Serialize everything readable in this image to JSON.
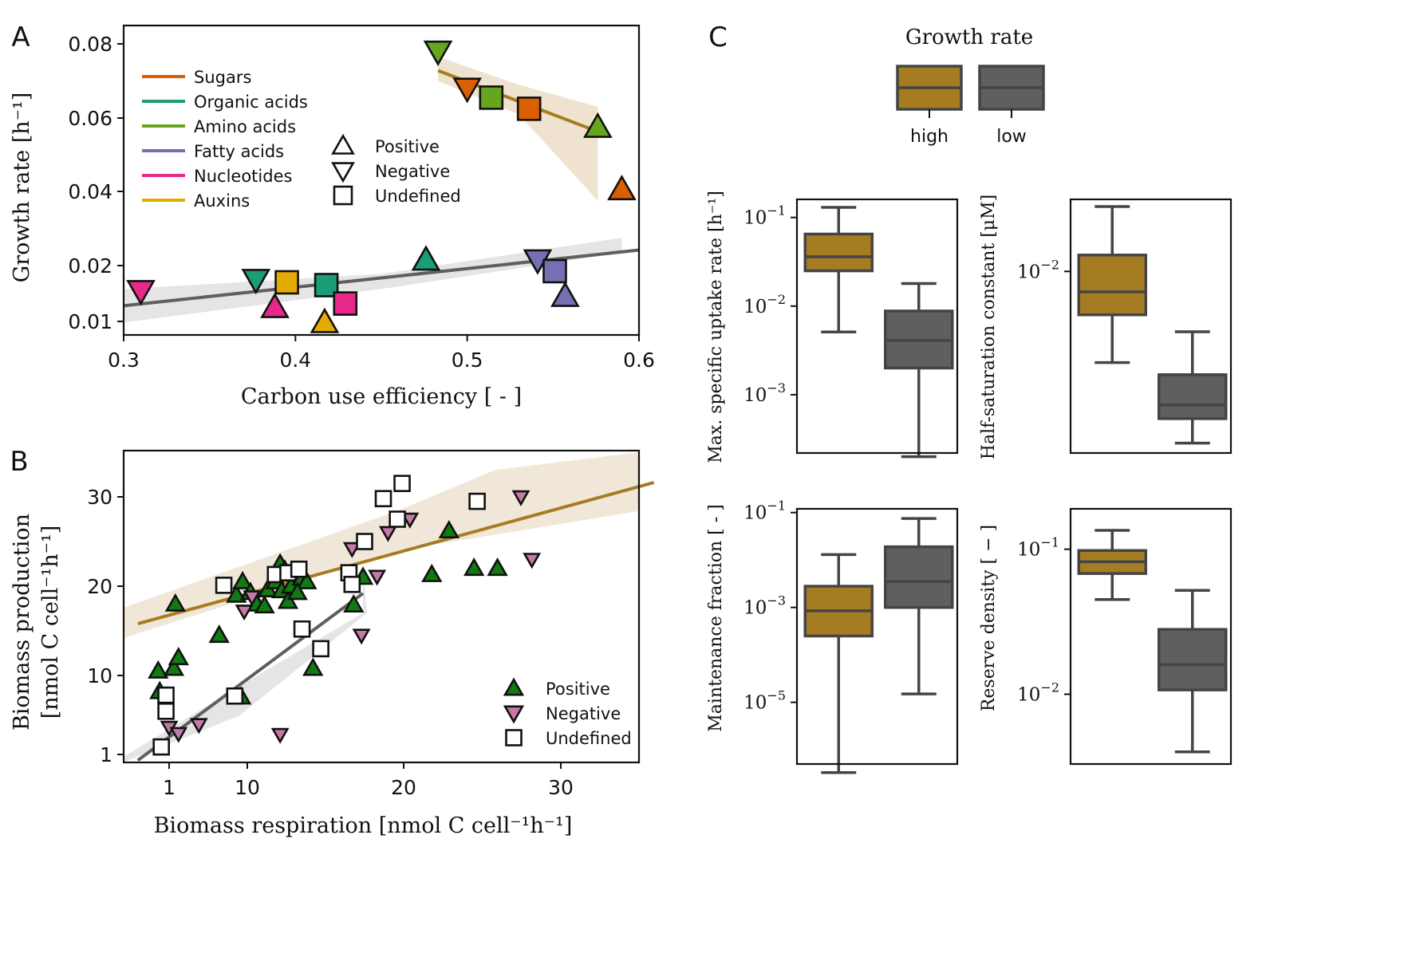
{
  "colors": {
    "sugars": "#d95f02",
    "organic_acids": "#1b9e77",
    "amino_acids": "#66a61e",
    "fatty_acids": "#7570b3",
    "nucleotides": "#e7298a",
    "auxins": "#e6ab02",
    "high": "#a67c23",
    "low": "#5f5f5f",
    "positive_b": "#117a11",
    "negative_b": "#c47aa6",
    "undefined_b": "#ffffff"
  },
  "chart_data": [
    {
      "panel": "A",
      "type": "scatter",
      "xlabel": "Carbon use efficiency [ - ]",
      "ylabel": "Growth rate [h⁻¹]",
      "xlim": [
        0.3,
        0.6
      ],
      "ylim": [
        0.0065,
        0.085
      ],
      "xticks": [
        "0.3",
        "0.4",
        "0.5",
        "0.6"
      ],
      "yticks": [
        "0.01",
        "0.02",
        "0.04",
        "0.06",
        "0.08"
      ],
      "legend_classes": [
        {
          "name": "Sugars",
          "color": "sugars"
        },
        {
          "name": "Organic acids",
          "color": "organic_acids"
        },
        {
          "name": "Amino acids",
          "color": "amino_acids"
        },
        {
          "name": "Fatty acids",
          "color": "fatty_acids"
        },
        {
          "name": "Nucleotides",
          "color": "nucleotides"
        },
        {
          "name": "Auxins",
          "color": "auxins"
        }
      ],
      "legend_markers": [
        {
          "name": "Positive",
          "marker": "up"
        },
        {
          "name": "Negative",
          "marker": "down"
        },
        {
          "name": "Undefined",
          "marker": "square"
        }
      ],
      "points": [
        {
          "x": 0.31,
          "y": 0.0155,
          "cls": "nucleotides",
          "m": "down"
        },
        {
          "x": 0.377,
          "y": 0.0175,
          "cls": "organic_acids",
          "m": "down"
        },
        {
          "x": 0.388,
          "y": 0.0125,
          "cls": "nucleotides",
          "m": "up"
        },
        {
          "x": 0.395,
          "y": 0.017,
          "cls": "auxins",
          "m": "square"
        },
        {
          "x": 0.418,
          "y": 0.0165,
          "cls": "organic_acids",
          "m": "square"
        },
        {
          "x": 0.417,
          "y": 0.0098,
          "cls": "auxins",
          "m": "up"
        },
        {
          "x": 0.429,
          "y": 0.0132,
          "cls": "nucleotides",
          "m": "square"
        },
        {
          "x": 0.476,
          "y": 0.0215,
          "cls": "organic_acids",
          "m": "up"
        },
        {
          "x": 0.541,
          "y": 0.0215,
          "cls": "fatty_acids",
          "m": "down"
        },
        {
          "x": 0.551,
          "y": 0.019,
          "cls": "fatty_acids",
          "m": "square"
        },
        {
          "x": 0.557,
          "y": 0.0145,
          "cls": "fatty_acids",
          "m": "up"
        },
        {
          "x": 0.483,
          "y": 0.078,
          "cls": "amino_acids",
          "m": "down"
        },
        {
          "x": 0.5,
          "y": 0.068,
          "cls": "sugars",
          "m": "down"
        },
        {
          "x": 0.514,
          "y": 0.0655,
          "cls": "amino_acids",
          "m": "square"
        },
        {
          "x": 0.536,
          "y": 0.0625,
          "cls": "sugars",
          "m": "square"
        },
        {
          "x": 0.576,
          "y": 0.0575,
          "cls": "amino_acids",
          "m": "up"
        },
        {
          "x": 0.59,
          "y": 0.0405,
          "cls": "sugars",
          "m": "up"
        }
      ],
      "fits": [
        {
          "group": "high",
          "x": [
            0.483,
            0.576
          ],
          "y": [
            0.0728,
            0.0563
          ]
        },
        {
          "group": "low",
          "x": [
            0.3,
            0.6
          ],
          "y": [
            0.0128,
            0.0242
          ]
        }
      ]
    },
    {
      "panel": "B",
      "type": "scatter",
      "xlabel": "Biomass respiration [nmol C cell⁻¹h⁻¹]",
      "ylabel": "Biomass production",
      "ylabel2": "[nmol C cell⁻¹h⁻¹]",
      "xlim": [
        -2,
        31
      ],
      "ylim": [
        0,
        35
      ],
      "xticks": [
        "1",
        "10",
        "20",
        "30"
      ],
      "yticks": [
        "1",
        "10",
        "20",
        "30"
      ],
      "legend_markers": [
        {
          "name": "Positive",
          "marker": "up",
          "color": "positive_b"
        },
        {
          "name": "Negative",
          "marker": "down",
          "color": "negative_b"
        },
        {
          "name": "Undefined",
          "marker": "square",
          "color": "undefined_b"
        }
      ],
      "positive": [
        [
          -0.7,
          10.5
        ],
        [
          -0.6,
          8.2
        ],
        [
          0.3,
          10.8
        ],
        [
          0.6,
          12
        ],
        [
          0.4,
          18
        ],
        [
          3.2,
          14.5
        ],
        [
          4.6,
          7.6
        ],
        [
          4.3,
          19
        ],
        [
          4.7,
          20.5
        ],
        [
          5.2,
          19.3
        ],
        [
          5.6,
          18
        ],
        [
          6.1,
          17.8
        ],
        [
          6.3,
          19.6
        ],
        [
          6.8,
          20.5
        ],
        [
          7.1,
          22.5
        ],
        [
          7.2,
          19.5
        ],
        [
          7.4,
          21.8
        ],
        [
          7.6,
          18.3
        ],
        [
          7.8,
          20
        ],
        [
          8.2,
          21.6
        ],
        [
          8.5,
          20.9
        ],
        [
          8.8,
          20.5
        ],
        [
          8.2,
          19.3
        ],
        [
          9.2,
          10.8
        ],
        [
          11.8,
          17.9
        ],
        [
          12.4,
          21
        ],
        [
          16.8,
          21.3
        ],
        [
          17.9,
          26.2
        ],
        [
          19.5,
          22
        ],
        [
          21,
          22
        ]
      ],
      "negative": [
        [
          0,
          4.2
        ],
        [
          0.6,
          3.5
        ],
        [
          1.9,
          4.5
        ],
        [
          4.8,
          17.2
        ],
        [
          5.3,
          18.8
        ],
        [
          7.1,
          3.4
        ],
        [
          11.7,
          24.2
        ],
        [
          12.3,
          14.5
        ],
        [
          13.3,
          21.1
        ],
        [
          14,
          26
        ],
        [
          15.4,
          27.5
        ],
        [
          22.5,
          30
        ],
        [
          23.2,
          23
        ]
      ],
      "undefined": [
        [
          -0.5,
          2
        ],
        [
          -0.2,
          7.8
        ],
        [
          -0.2,
          6
        ],
        [
          3.5,
          20.1
        ],
        [
          4.2,
          7.7
        ],
        [
          6.8,
          21.3
        ],
        [
          7.6,
          21.5
        ],
        [
          8.3,
          21.9
        ],
        [
          8.5,
          15.2
        ],
        [
          9.7,
          13
        ],
        [
          11.5,
          21.5
        ],
        [
          11.7,
          20.2
        ],
        [
          12.5,
          25
        ],
        [
          13.7,
          29.8
        ],
        [
          14.6,
          27.5
        ],
        [
          14.9,
          31.5
        ],
        [
          19.7,
          29.5
        ]
      ],
      "fits": [
        {
          "group": "high",
          "x": [
            -2,
            31
          ],
          "y": [
            15.8,
            31.6
          ]
        },
        {
          "group": "low",
          "x": [
            -2,
            12.4
          ],
          "y": [
            0.5,
            19.2
          ]
        }
      ]
    },
    {
      "panel": "C",
      "type": "box",
      "legend_title": "Growth rate",
      "groups": [
        "high",
        "low"
      ],
      "subplots": [
        {
          "ylabel": "Max. specific uptake rate [h⁻¹]",
          "scale": "log",
          "ylim": [
            0.00022,
            0.16
          ],
          "ticks": [
            0.1,
            0.01,
            0.001
          ],
          "boxes": [
            {
              "group": "high",
              "whislo": 0.0051,
              "q1": 0.025,
              "med": 0.036,
              "q3": 0.065,
              "whishi": 0.13
            },
            {
              "group": "low",
              "whislo": 0.0002,
              "q1": 0.002,
              "med": 0.0041,
              "q3": 0.0088,
              "whishi": 0.018
            }
          ]
        },
        {
          "ylabel": "Half-saturation constant [μM]",
          "scale": "log",
          "ylim": [
            0.0011,
            0.024
          ],
          "ticks": [
            0.01
          ],
          "boxes": [
            {
              "group": "high",
              "whislo": 0.0033,
              "q1": 0.0059,
              "med": 0.0078,
              "q3": 0.0122,
              "whishi": 0.022
            },
            {
              "group": "low",
              "whislo": 0.00124,
              "q1": 0.00167,
              "med": 0.00197,
              "q3": 0.00285,
              "whishi": 0.0048
            }
          ]
        },
        {
          "ylabel": "Maintenance fraction [ - ]",
          "scale": "log",
          "ylim": [
            5e-07,
            0.12
          ],
          "ticks": [
            0.1,
            0.001,
            1e-05
          ],
          "boxes": [
            {
              "group": "high",
              "whislo": 3.3e-07,
              "q1": 0.00025,
              "med": 0.00085,
              "q3": 0.0028,
              "whishi": 0.013
            },
            {
              "group": "low",
              "whislo": 1.5e-05,
              "q1": 0.001,
              "med": 0.0035,
              "q3": 0.019,
              "whishi": 0.075
            }
          ]
        },
        {
          "ylabel": "Reserve density [ − ]",
          "scale": "log",
          "ylim": [
            0.0033,
            0.19
          ],
          "ticks": [
            0.1,
            0.01
          ],
          "boxes": [
            {
              "group": "high",
              "whislo": 0.045,
              "q1": 0.068,
              "med": 0.082,
              "q3": 0.098,
              "whishi": 0.135
            },
            {
              "group": "low",
              "whislo": 0.004,
              "q1": 0.0107,
              "med": 0.016,
              "q3": 0.028,
              "whishi": 0.052
            }
          ]
        }
      ]
    }
  ],
  "panel_labels": {
    "a": "A",
    "b": "B",
    "c": "C"
  }
}
